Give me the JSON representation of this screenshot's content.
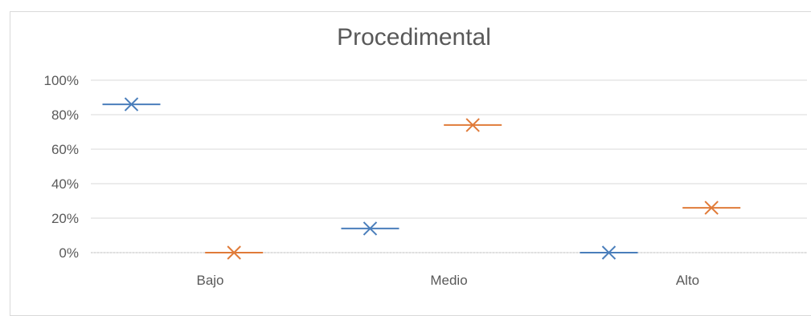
{
  "chart_data": {
    "type": "scatter",
    "title": "Procedimental",
    "categories": [
      "Bajo",
      "Medio",
      "Alto"
    ],
    "ylim": [
      0,
      1
    ],
    "ytick_labels": [
      "0%",
      "20%",
      "40%",
      "60%",
      "80%",
      "100%"
    ],
    "grid": true,
    "legend": "none",
    "series": [
      {
        "values": [
          0.86,
          0.14,
          0.0
        ],
        "color": "#4a7ebb"
      },
      {
        "values": [
          0.0,
          0.74,
          0.26
        ],
        "color": "#e07b39"
      }
    ]
  },
  "colors": {
    "gridline": "#d9d9d9",
    "axis_text": "#595959"
  }
}
